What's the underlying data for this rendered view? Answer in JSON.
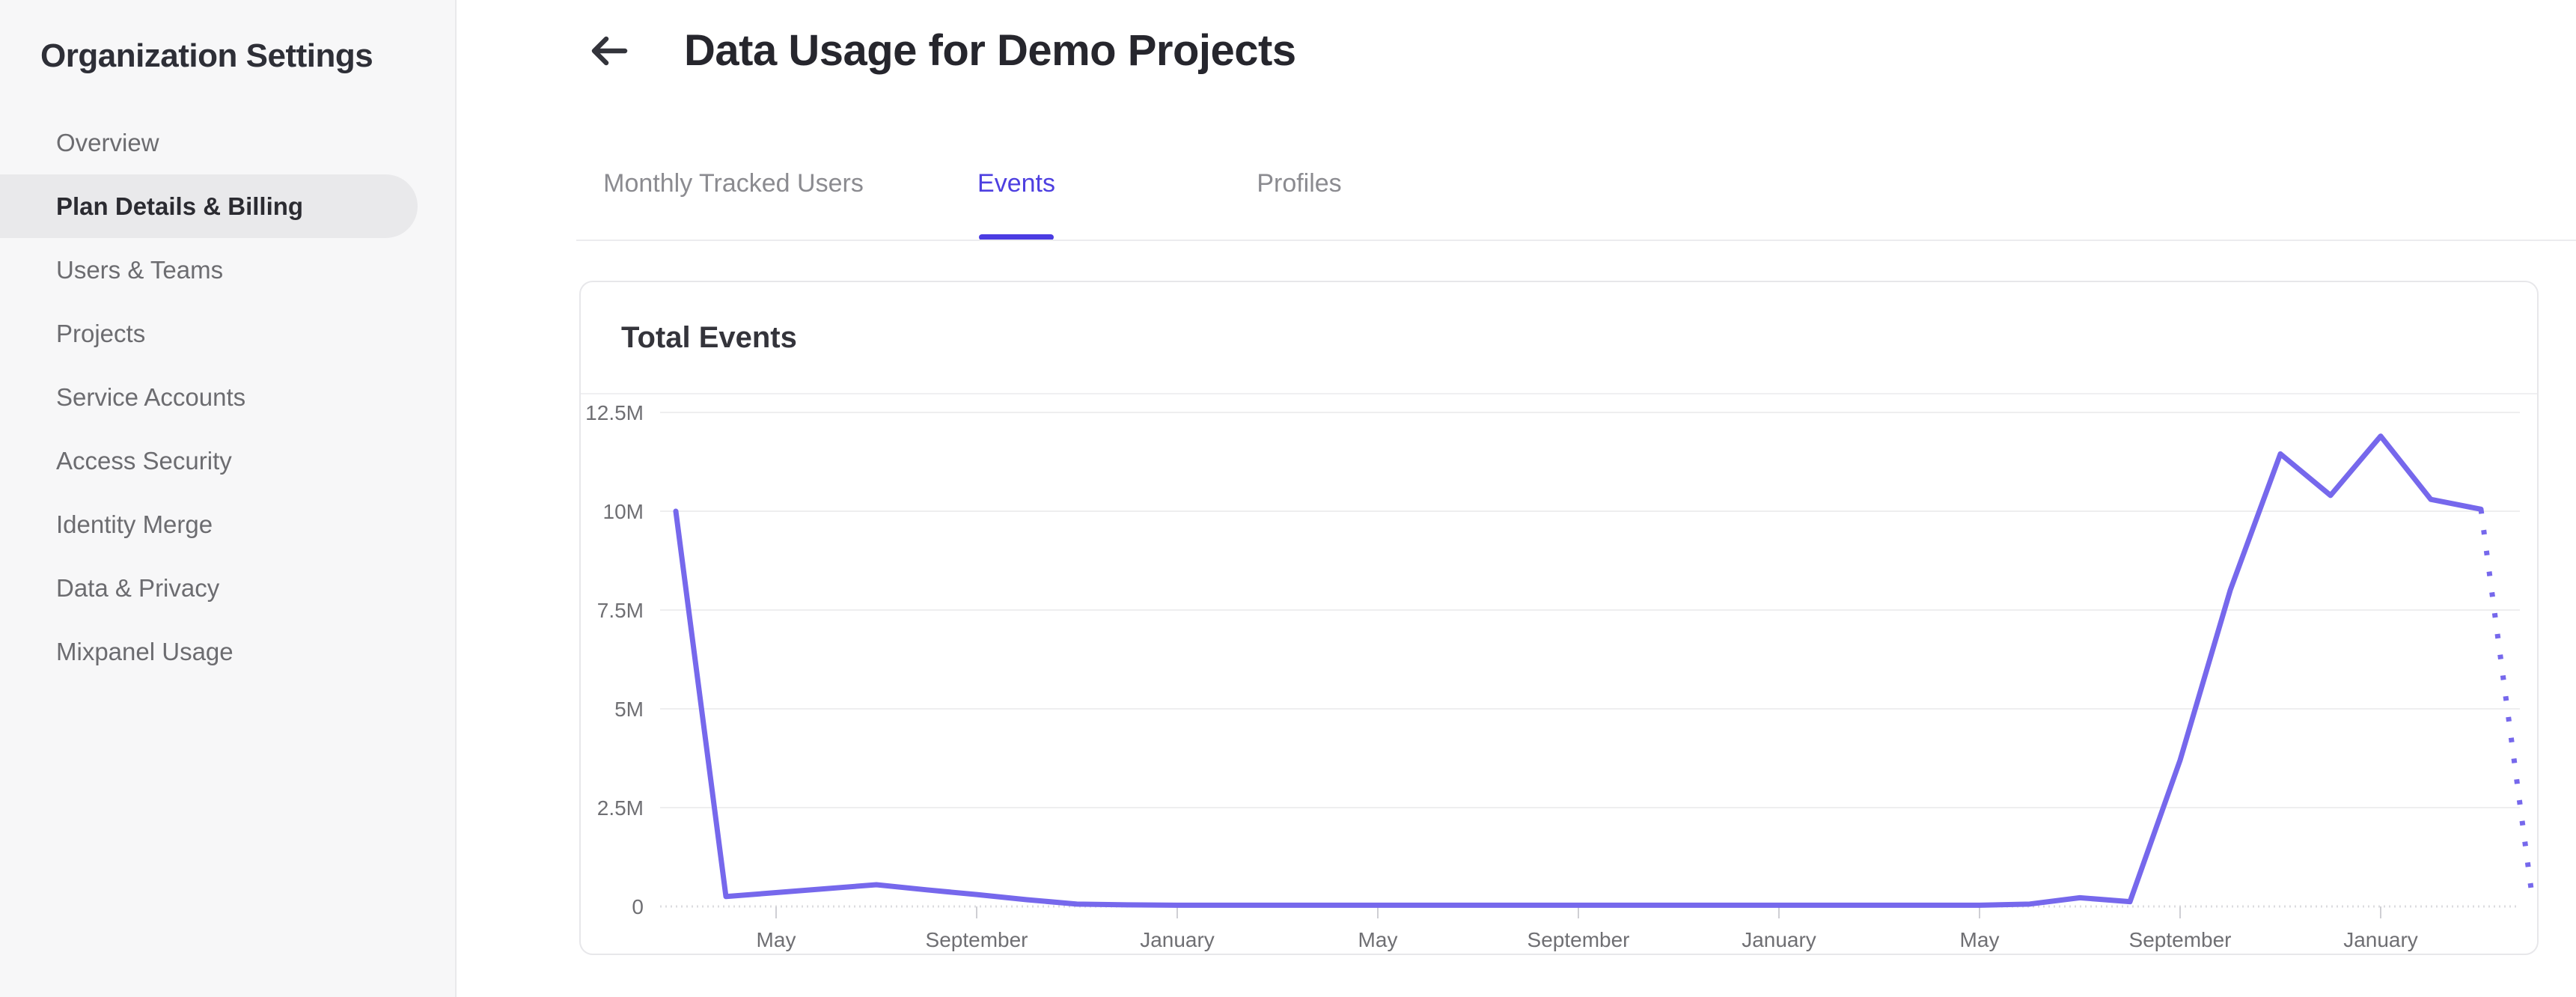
{
  "sidebar": {
    "title": "Organization Settings",
    "items": [
      {
        "label": "Overview",
        "active": false
      },
      {
        "label": "Plan Details & Billing",
        "active": true
      },
      {
        "label": "Users & Teams",
        "active": false
      },
      {
        "label": "Projects",
        "active": false
      },
      {
        "label": "Service Accounts",
        "active": false
      },
      {
        "label": "Access Security",
        "active": false
      },
      {
        "label": "Identity Merge",
        "active": false
      },
      {
        "label": "Data & Privacy",
        "active": false
      },
      {
        "label": "Mixpanel Usage",
        "active": false
      }
    ]
  },
  "header": {
    "title": "Data Usage for Demo Projects",
    "back_icon": "arrow-left"
  },
  "tabs": {
    "items": [
      {
        "label": "Monthly Tracked Users",
        "active": false
      },
      {
        "label": "Events",
        "active": true
      },
      {
        "label": "Profiles",
        "active": false
      }
    ]
  },
  "card": {
    "title": "Total Events"
  },
  "colors": {
    "accent": "#4d3fe0",
    "series_line": "#7668ec",
    "gridline": "#eeeeef",
    "axis_text": "#6f6f73"
  },
  "chart_data": {
    "type": "line",
    "title": "Total Events",
    "ylabel": "",
    "xlabel": "",
    "ylim_millions": [
      0,
      12.5
    ],
    "grid": true,
    "legend": "none",
    "y_tick_labels": [
      "12.5M",
      "10M",
      "7.5M",
      "5M",
      "2.5M",
      "0"
    ],
    "x_tick_labels": [
      "May",
      "September",
      "January",
      "May",
      "September",
      "January",
      "May",
      "September",
      "January"
    ],
    "x_tick_month_indices": [
      2,
      6,
      10,
      14,
      18,
      22,
      26,
      30,
      34
    ],
    "months": [
      "Mar",
      "Apr",
      "May",
      "Jun",
      "Jul",
      "Aug",
      "Sep",
      "Oct",
      "Nov",
      "Dec",
      "Jan",
      "Feb",
      "Mar",
      "Apr",
      "May",
      "Jun",
      "Jul",
      "Aug",
      "Sep",
      "Oct",
      "Nov",
      "Dec",
      "Jan",
      "Feb",
      "Mar",
      "Apr",
      "May",
      "Jun",
      "Jul",
      "Aug",
      "Sep",
      "Oct",
      "Nov",
      "Dec",
      "Jan",
      "Feb",
      "Mar",
      "Apr"
    ],
    "values_millions": [
      10.0,
      0.25,
      0.35,
      0.45,
      0.55,
      0.42,
      0.3,
      0.17,
      0.06,
      0.04,
      0.03,
      0.03,
      0.03,
      0.03,
      0.03,
      0.03,
      0.03,
      0.03,
      0.03,
      0.03,
      0.03,
      0.03,
      0.03,
      0.03,
      0.03,
      0.03,
      0.03,
      0.06,
      0.22,
      0.12,
      3.7,
      8.0,
      11.45,
      10.4,
      11.9,
      10.3,
      10.05,
      0.45
    ],
    "projection_start_index": 36,
    "projection_style": "dotted",
    "series_color": "#7668ec"
  }
}
